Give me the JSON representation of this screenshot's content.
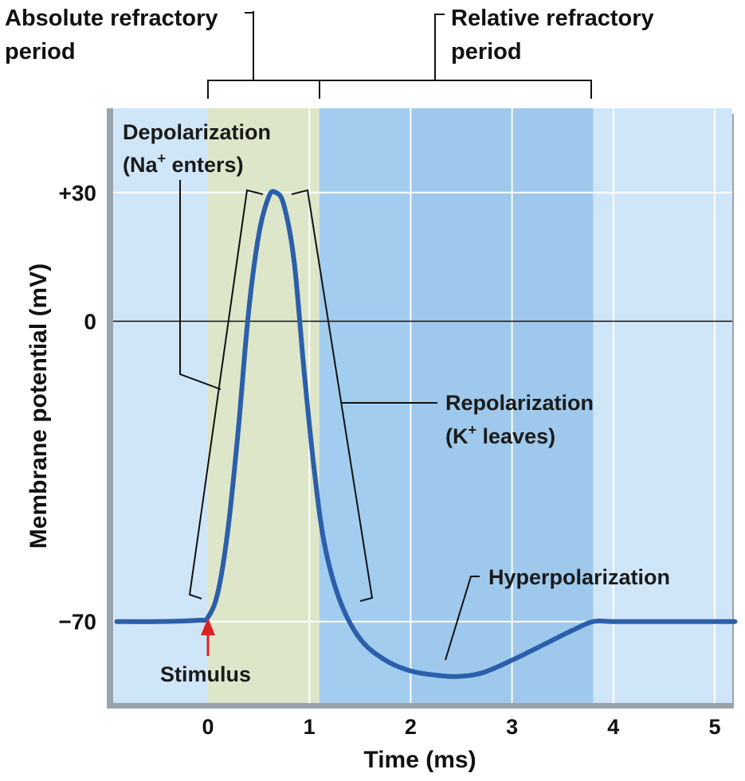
{
  "chart_data": {
    "type": "line",
    "xlabel": "Time (ms)",
    "ylabel": "Membrane potential (mV)",
    "xlim": [
      -0.9,
      5.2
    ],
    "ylim": [
      -84,
      48
    ],
    "x_ticks": [
      "0",
      "1",
      "2",
      "3",
      "4",
      "5"
    ],
    "x_tick_values": [
      0,
      1,
      2,
      3,
      4,
      5
    ],
    "y_ticks": [
      "+30",
      "0",
      "−70"
    ],
    "y_tick_values": [
      30,
      0,
      -70
    ],
    "grid": true,
    "series": [
      {
        "x": [
          -0.9,
          -0.5,
          -0.1,
          0.0,
          0.1,
          0.2,
          0.3,
          0.4,
          0.5,
          0.6,
          0.67,
          0.75,
          0.85,
          0.95,
          1.05,
          1.15,
          1.3,
          1.5,
          1.75,
          2.0,
          2.25,
          2.45,
          2.7,
          3.0,
          3.3,
          3.6,
          3.8,
          4.0,
          4.5,
          5.0,
          5.2
        ],
        "y": [
          -70,
          -70,
          -69.7,
          -69,
          -63,
          -48,
          -25,
          2,
          20,
          29,
          30,
          27,
          14,
          -12,
          -35,
          -52,
          -65,
          -74,
          -79,
          -81.5,
          -82.5,
          -82.8,
          -82,
          -79,
          -75.5,
          -72,
          -70,
          -70,
          -70,
          -70,
          -70
        ]
      }
    ],
    "regions": [
      {
        "x": [
          0.0,
          1.1
        ],
        "color": "#dde6c8"
      },
      {
        "x": [
          1.1,
          2.0
        ],
        "color": "#a2cdef"
      },
      {
        "x": [
          2.0,
          3.8
        ],
        "color": "#9ec9ec"
      }
    ],
    "background_color": "#cfe6f8",
    "line_color": "#2c5fab",
    "stimulus_color": "#e02020",
    "zero_line": true,
    "annotations": {
      "absolute_refractory": [
        "Absolute refractory",
        "period"
      ],
      "relative_refractory": [
        "Relative refractory",
        "period"
      ],
      "depolarization": [
        "Depolarization",
        "(Na",
        "+",
        " enters)"
      ],
      "repolarization": [
        "Repolarization",
        "(K",
        "+",
        " leaves)"
      ],
      "hyperpolarization": "Hyperpolarization",
      "stimulus": "Stimulus"
    }
  }
}
